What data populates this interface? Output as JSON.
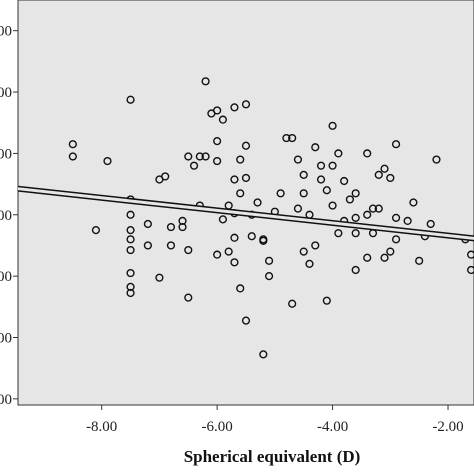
{
  "chart_data": {
    "type": "scatter",
    "title": "",
    "xlabel": "Spherical equivalent (D)",
    "ylabel": "",
    "xlim": [
      -9.45,
      -1.55
    ],
    "ylim": [
      -220,
      1100
    ],
    "x_ticks": [
      -8,
      -6,
      -4,
      -2
    ],
    "x_tick_labels": [
      "-8.00",
      "-6.00",
      "-4.00",
      "-2.00"
    ],
    "y_ticks": [
      1000,
      800,
      600,
      400,
      200,
      0,
      -200
    ],
    "y_tick_labels": [
      "000",
      "000",
      "000",
      "000",
      "000",
      "000",
      "000"
    ],
    "grid": false,
    "background_color": "#e6e6e6",
    "marker_color": "#111111",
    "fit_line": {
      "x": [
        -9.45,
        -1.55
      ],
      "y": [
        485,
        323
      ]
    },
    "series": [
      {
        "marker": "circle-open",
        "points": [
          [
            -8.5,
            630
          ],
          [
            -8.5,
            590
          ],
          [
            -7.9,
            575
          ],
          [
            -7.5,
            775
          ],
          [
            -7.5,
            450
          ],
          [
            -7.5,
            400
          ],
          [
            -7.5,
            350
          ],
          [
            -7.5,
            320
          ],
          [
            -7.5,
            285
          ],
          [
            -7.5,
            210
          ],
          [
            -7.5,
            165
          ],
          [
            -7.5,
            145
          ],
          [
            -8.1,
            350
          ],
          [
            -7.2,
            300
          ],
          [
            -7.0,
            515
          ],
          [
            -6.9,
            525
          ],
          [
            -6.8,
            360
          ],
          [
            -7.0,
            195
          ],
          [
            -6.6,
            360
          ],
          [
            -6.6,
            380
          ],
          [
            -6.5,
            285
          ],
          [
            -6.5,
            590
          ],
          [
            -6.5,
            130
          ],
          [
            -6.3,
            590
          ],
          [
            -6.3,
            430
          ],
          [
            -6.2,
            835
          ],
          [
            -6.2,
            590
          ],
          [
            -6.1,
            730
          ],
          [
            -6.0,
            740
          ],
          [
            -6.0,
            640
          ],
          [
            -6.0,
            575
          ],
          [
            -6.0,
            270
          ],
          [
            -5.9,
            710
          ],
          [
            -5.9,
            385
          ],
          [
            -5.8,
            280
          ],
          [
            -5.7,
            750
          ],
          [
            -5.7,
            515
          ],
          [
            -5.7,
            405
          ],
          [
            -5.7,
            325
          ],
          [
            -5.7,
            245
          ],
          [
            -5.6,
            470
          ],
          [
            -5.6,
            160
          ],
          [
            -5.5,
            760
          ],
          [
            -5.5,
            625
          ],
          [
            -5.5,
            520
          ],
          [
            -5.4,
            400
          ],
          [
            -5.4,
            330
          ],
          [
            -5.5,
            55
          ],
          [
            -5.3,
            440
          ],
          [
            -5.2,
            320
          ],
          [
            -5.2,
            315
          ],
          [
            -5.1,
            250
          ],
          [
            -5.1,
            200
          ],
          [
            -5.2,
            -55
          ],
          [
            -5.0,
            410
          ],
          [
            -4.8,
            650
          ],
          [
            -4.7,
            650
          ],
          [
            -4.7,
            110
          ],
          [
            -4.6,
            580
          ],
          [
            -4.5,
            530
          ],
          [
            -4.5,
            470
          ],
          [
            -4.4,
            400
          ],
          [
            -4.5,
            280
          ],
          [
            -4.4,
            240
          ],
          [
            -4.3,
            620
          ],
          [
            -4.2,
            560
          ],
          [
            -4.2,
            515
          ],
          [
            -4.1,
            480
          ],
          [
            -4.1,
            120
          ],
          [
            -4.0,
            690
          ],
          [
            -4.0,
            560
          ],
          [
            -4.0,
            430
          ],
          [
            -3.9,
            600
          ],
          [
            -3.9,
            340
          ],
          [
            -3.8,
            510
          ],
          [
            -3.7,
            450
          ],
          [
            -3.6,
            470
          ],
          [
            -3.6,
            390
          ],
          [
            -3.4,
            600
          ],
          [
            -3.4,
            400
          ],
          [
            -3.3,
            340
          ],
          [
            -3.2,
            420
          ],
          [
            -3.1,
            550
          ],
          [
            -3.1,
            260
          ],
          [
            -2.9,
            630
          ],
          [
            -2.9,
            320
          ],
          [
            -3.0,
            280
          ],
          [
            -2.6,
            440
          ],
          [
            -2.5,
            250
          ],
          [
            -2.2,
            580
          ],
          [
            -2.3,
            370
          ],
          [
            -1.7,
            320
          ],
          [
            -1.6,
            270
          ],
          [
            -1.6,
            220
          ],
          [
            -3.8,
            380
          ],
          [
            -3.6,
            340
          ],
          [
            -3.3,
            420
          ],
          [
            -3.0,
            520
          ],
          [
            -2.9,
            390
          ],
          [
            -3.6,
            220
          ],
          [
            -2.7,
            380
          ],
          [
            -4.3,
            300
          ],
          [
            -4.6,
            420
          ],
          [
            -5.6,
            580
          ],
          [
            -6.8,
            300
          ],
          [
            -7.2,
            370
          ],
          [
            -4.9,
            470
          ],
          [
            -5.8,
            430
          ],
          [
            -3.2,
            530
          ],
          [
            -3.4,
            260
          ],
          [
            -6.4,
            560
          ],
          [
            -2.4,
            330
          ]
        ]
      }
    ]
  }
}
